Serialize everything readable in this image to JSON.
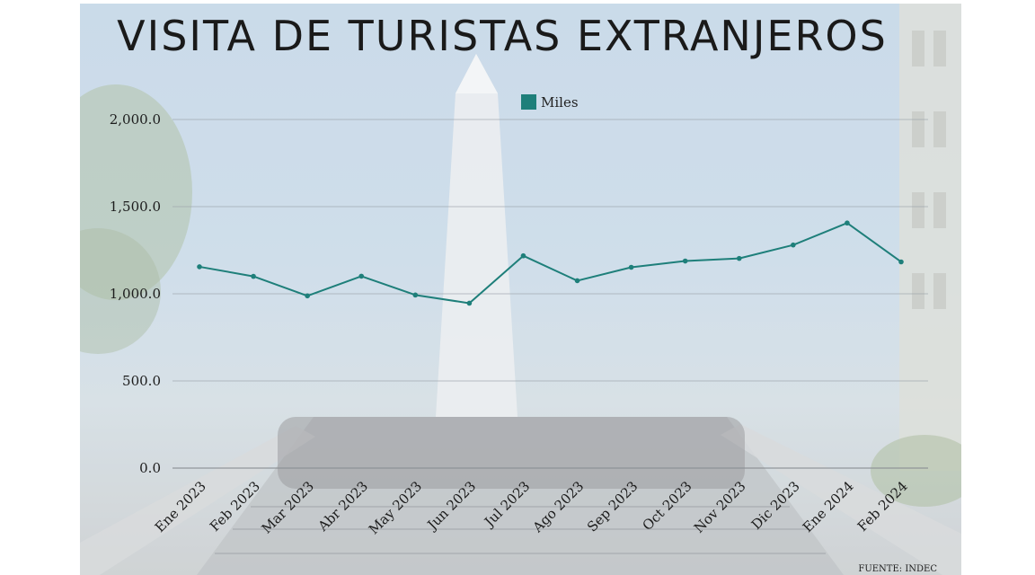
{
  "chart_data": {
    "type": "line",
    "title": "VISITA DE TURISTAS EXTRANJEROS",
    "categories": [
      "Ene 2023",
      "Feb 2023",
      "Mar 2023",
      "Abr 2023",
      "May 2023",
      "Jun 2023",
      "Jul 2023",
      "Ago 2023",
      "Sep 2023",
      "Oct 2023",
      "Nov 2023",
      "Dic 2023",
      "Ene 2024",
      "Feb 2024"
    ],
    "series": [
      {
        "name": "Miles",
        "color": "#1e7f7a",
        "values": [
          1155,
          1100,
          988,
          1101,
          993,
          946,
          1218,
          1075,
          1152,
          1188,
          1203,
          1280,
          1406,
          1183
        ]
      }
    ],
    "yticks": [
      "0.0",
      "500.0",
      "1,000.0",
      "1,500.0",
      "2,000.0"
    ],
    "ylim": [
      0,
      2000
    ],
    "grid": true,
    "legend_position": "top-center",
    "source": "FUENTE: INDEC"
  }
}
